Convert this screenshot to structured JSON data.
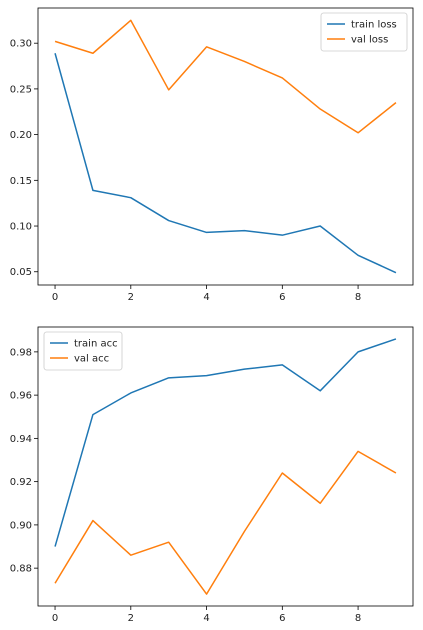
{
  "chart_data": [
    {
      "type": "line",
      "title": "",
      "xlabel": "",
      "ylabel": "",
      "x": [
        0,
        1,
        2,
        3,
        4,
        5,
        6,
        7,
        8,
        9
      ],
      "xlim": [
        -0.45,
        9.45
      ],
      "ylim": [
        0.0355,
        0.3385
      ],
      "xticks": [
        0,
        2,
        4,
        6,
        8
      ],
      "xtick_labels": [
        "0",
        "2",
        "4",
        "6",
        "8"
      ],
      "yticks": [
        0.05,
        0.1,
        0.15,
        0.2,
        0.25,
        0.3
      ],
      "ytick_labels": [
        "0.05",
        "0.10",
        "0.15",
        "0.20",
        "0.25",
        "0.30"
      ],
      "legend_position": "upper-right",
      "grid": false,
      "series": [
        {
          "name": "train loss",
          "color": "#1f77b4",
          "values": [
            0.289,
            0.139,
            0.131,
            0.106,
            0.093,
            0.095,
            0.09,
            0.1,
            0.068,
            0.049
          ]
        },
        {
          "name": "val loss",
          "color": "#ff7f0e",
          "values": [
            0.302,
            0.289,
            0.325,
            0.249,
            0.296,
            0.28,
            0.262,
            0.228,
            0.202,
            0.235
          ]
        }
      ]
    },
    {
      "type": "line",
      "title": "",
      "xlabel": "",
      "ylabel": "",
      "x": [
        0,
        1,
        2,
        3,
        4,
        5,
        6,
        7,
        8,
        9
      ],
      "xlim": [
        -0.45,
        9.45
      ],
      "ylim": [
        0.8625,
        0.9915
      ],
      "xticks": [
        0,
        2,
        4,
        6,
        8
      ],
      "xtick_labels": [
        "0",
        "2",
        "4",
        "6",
        "8"
      ],
      "yticks": [
        0.88,
        0.9,
        0.92,
        0.94,
        0.96,
        0.98
      ],
      "ytick_labels": [
        "0.88",
        "0.90",
        "0.92",
        "0.94",
        "0.96",
        "0.98"
      ],
      "legend_position": "upper-left",
      "grid": false,
      "series": [
        {
          "name": "train acc",
          "color": "#1f77b4",
          "values": [
            0.89,
            0.951,
            0.961,
            0.968,
            0.969,
            0.972,
            0.974,
            0.962,
            0.98,
            0.986
          ]
        },
        {
          "name": "val acc",
          "color": "#ff7f0e",
          "values": [
            0.873,
            0.902,
            0.886,
            0.892,
            0.868,
            0.897,
            0.924,
            0.91,
            0.934,
            0.924
          ]
        }
      ]
    }
  ]
}
